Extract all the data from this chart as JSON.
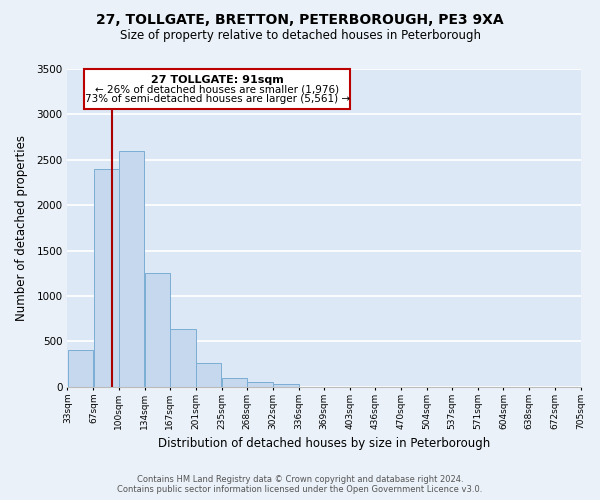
{
  "title": "27, TOLLGATE, BRETTON, PETERBOROUGH, PE3 9XA",
  "subtitle": "Size of property relative to detached houses in Peterborough",
  "xlabel": "Distribution of detached houses by size in Peterborough",
  "ylabel": "Number of detached properties",
  "bar_color": "#c5d8ee",
  "bar_edge_color": "#7badd4",
  "background_color": "#dce8f5",
  "grid_color": "#ffffff",
  "fig_background": "#eaf1f8",
  "property_line_x": 91,
  "property_line_color": "#aa0000",
  "annotation_box_color": "#bb0000",
  "annotation_line1": "27 TOLLGATE: 91sqm",
  "annotation_line2": "← 26% of detached houses are smaller (1,976)",
  "annotation_line3": "73% of semi-detached houses are larger (5,561) →",
  "bins": [
    33,
    67,
    100,
    134,
    167,
    201,
    235,
    268,
    302,
    336,
    369,
    403,
    436,
    470,
    504,
    537,
    571,
    604,
    638,
    672,
    705
  ],
  "counts": [
    400,
    2400,
    2600,
    1250,
    640,
    260,
    100,
    55,
    30,
    0,
    0,
    0,
    0,
    0,
    0,
    0,
    0,
    0,
    0,
    0
  ],
  "xlim": [
    33,
    705
  ],
  "ylim": [
    0,
    3500
  ],
  "yticks": [
    0,
    500,
    1000,
    1500,
    2000,
    2500,
    3000,
    3500
  ],
  "footnote1": "Contains HM Land Registry data © Crown copyright and database right 2024.",
  "footnote2": "Contains public sector information licensed under the Open Government Licence v3.0."
}
